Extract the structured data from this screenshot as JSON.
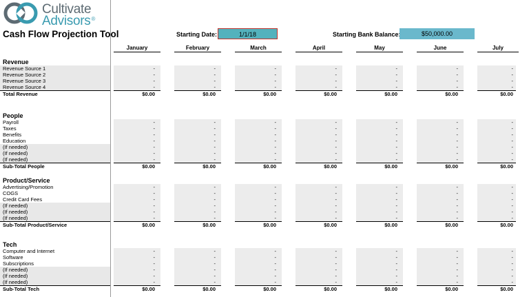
{
  "brand": {
    "line1": "Cultivate",
    "line2": "Advisors",
    "mark": "®"
  },
  "title": "Cash Flow Projection Tool",
  "starting_date": {
    "label": "Starting Date:",
    "value": "1/1/18"
  },
  "starting_balance": {
    "label": "Starting Bank Balance:",
    "value": "$50,000.00"
  },
  "months": [
    "January",
    "February",
    "March",
    "April",
    "May",
    "June",
    "July"
  ],
  "empty_value": "-",
  "sections": [
    {
      "title": "Revenue",
      "rows": [
        "Revenue Source 1",
        "Revenue Source 2",
        "Revenue Source 3",
        "Revenue Source 4"
      ],
      "total_label": "Total Revenue",
      "totals": [
        "$0.00",
        "$0.00",
        "$0.00",
        "$0.00",
        "$0.00",
        "$0.00",
        "$0.00"
      ]
    },
    {
      "title": "People",
      "rows": [
        "Payroll",
        "Taxes",
        "Benefits",
        "Education",
        "(If needed)",
        "(If needed)",
        "(If needed)"
      ],
      "total_label": "Sub-Total People",
      "totals": [
        "$0.00",
        "$0.00",
        "$0.00",
        "$0.00",
        "$0.00",
        "$0.00",
        "$0.00"
      ]
    },
    {
      "title": "Product/Service",
      "rows": [
        "Advertising/Promotion",
        "COGS",
        "Credit Card Fees",
        "(If needed)",
        "(If needed)",
        "(If needed)"
      ],
      "total_label": "Sub-Total Product/Service",
      "totals": [
        "$0.00",
        "$0.00",
        "$0.00",
        "$0.00",
        "$0.00",
        "$0.00",
        "$0.00"
      ]
    },
    {
      "title": "Tech",
      "rows": [
        "Computer and Internet",
        "Software",
        "Subscriptions",
        "(If needed)",
        "(If needed)",
        "(If needed)"
      ],
      "total_label": "Sub-Total Tech",
      "totals": [
        "$0.00",
        "$0.00",
        "$0.00",
        "$0.00",
        "$0.00",
        "$0.00",
        "$0.00"
      ]
    }
  ]
}
